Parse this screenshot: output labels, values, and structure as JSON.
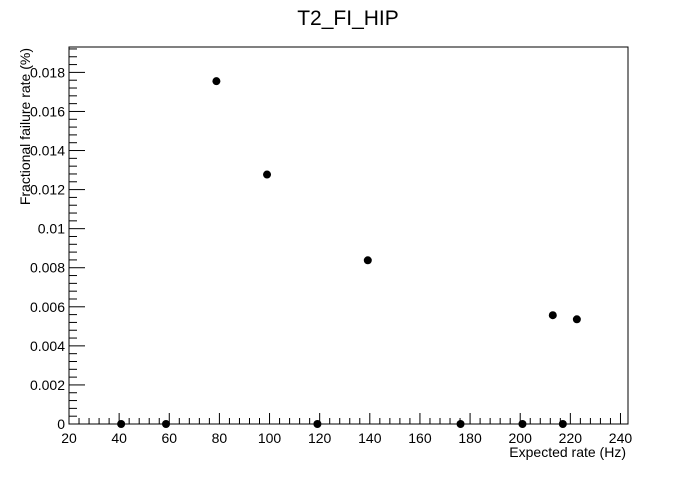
{
  "chart_data": {
    "type": "scatter",
    "title": "T2_FI_HIP",
    "xlabel": "Expected rate (Hz)",
    "ylabel": "Fractional failure rate (%)",
    "xlim": [
      20,
      243
    ],
    "ylim": [
      0,
      0.0193
    ],
    "x_ticks": [
      20,
      40,
      60,
      80,
      100,
      120,
      140,
      160,
      180,
      200,
      220,
      240
    ],
    "y_ticks": [
      0,
      0.002,
      0.004,
      0.006,
      0.008,
      0.01,
      0.012,
      0.014,
      0.016,
      0.018
    ],
    "x_tick_labels": [
      "20",
      "40",
      "60",
      "80",
      "100",
      "120",
      "140",
      "160",
      "180",
      "200",
      "220",
      "240"
    ],
    "y_tick_labels": [
      "0",
      "0.002",
      "0.004",
      "0.006",
      "0.008",
      "0.01",
      "0.012",
      "0.014",
      "0.016",
      "0.018"
    ],
    "grid": false,
    "series": [
      {
        "color": "#000000",
        "x": [
          40.8,
          58.7,
          78.8,
          99,
          119.1,
          139.2,
          176.2,
          200.9,
          213,
          217,
          222.6
        ],
        "y": [
          0,
          0,
          0.01755,
          0.01277,
          0,
          0.00838,
          0,
          0,
          0.00557,
          0,
          0.00536
        ]
      }
    ]
  }
}
